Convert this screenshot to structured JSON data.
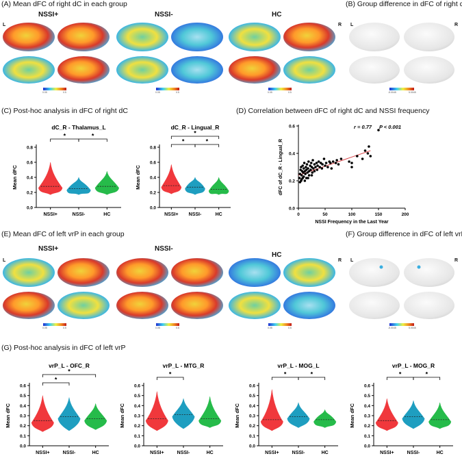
{
  "panels": {
    "A": {
      "title": "(A) Mean dFC of right dC in each group",
      "groups": [
        "NSSI+",
        "NSSI-",
        "HC"
      ],
      "left": "L",
      "right": "R",
      "colorbar": [
        {
          "min": "0.05",
          "max": "0.5"
        },
        {
          "min": "0.05",
          "max": "0.5"
        },
        {
          "min": "0.05",
          "max": "0.5"
        }
      ]
    },
    "B": {
      "title": "(B) Group difference in dFC of right dC",
      "left": "L",
      "right": "R",
      "colorbar": {
        "min": "-5.0045",
        "max": "5.0045"
      }
    },
    "C": {
      "title": "(C) Post-hoc analysis in dFC of right dC"
    },
    "D": {
      "title": "(D) Correlation between dFC of right dC and NSSI frequency"
    },
    "E": {
      "title": "(E) Mean dFC of left vrP in each group",
      "groups": [
        "NSSI+",
        "NSSI-",
        "HC"
      ],
      "left": "L",
      "right": "R",
      "colorbar": [
        {
          "min": "0.05",
          "max": "0.5"
        },
        {
          "min": "0.05",
          "max": "0.5"
        },
        {
          "min": "0.05",
          "max": "0.5"
        }
      ]
    },
    "F": {
      "title": "(F) Group difference in dFC of left vrP",
      "left": "L",
      "right": "R",
      "colorbar": {
        "min": "-5.0045",
        "max": "5.0045"
      }
    },
    "G": {
      "title": "(G) Post-hoc analysis in dFC of left vrP"
    }
  },
  "colors": {
    "NSSI+": "#f0383c",
    "NSSI-": "#1e9ec0",
    "HC": "#26bb4a",
    "fit_line": "#d9474a"
  },
  "chart_data": [
    {
      "type": "violin",
      "title": "dC_R - Thalamus_L",
      "ylabel": "Mean dFC",
      "ylim": [
        0.0,
        0.8
      ],
      "yticks": [
        "0.0",
        "0.2",
        "0.4",
        "0.6",
        "0.8"
      ],
      "categories": [
        "NSSI+",
        "NSSI-",
        "HC"
      ],
      "median": [
        0.28,
        0.25,
        0.28
      ],
      "min": [
        0.17,
        0.17,
        0.17
      ],
      "max": [
        0.6,
        0.4,
        0.48
      ],
      "significance": [
        {
          "pair": [
            "NSSI+",
            "NSSI-"
          ],
          "label": "*"
        },
        {
          "pair": [
            "NSSI-",
            "HC"
          ],
          "label": "*"
        }
      ]
    },
    {
      "type": "violin",
      "title": "dC_R - Lingual_R",
      "ylabel": "Mean dFC",
      "ylim": [
        0.0,
        0.8
      ],
      "yticks": [
        "0.0",
        "0.2",
        "0.4",
        "0.6",
        "0.8"
      ],
      "categories": [
        "NSSI+",
        "NSSI-",
        "HC"
      ],
      "median": [
        0.29,
        0.27,
        0.24
      ],
      "min": [
        0.18,
        0.17,
        0.17
      ],
      "max": [
        0.57,
        0.4,
        0.4
      ],
      "significance": [
        {
          "pair": [
            "NSSI+",
            "HC"
          ],
          "label": "*"
        },
        {
          "pair": [
            "NSSI+",
            "NSSI-"
          ],
          "label": "*"
        },
        {
          "pair": [
            "NSSI-",
            "HC"
          ],
          "label": "*"
        }
      ]
    },
    {
      "type": "scatter",
      "title": "",
      "xlabel": "NSSI Frequency in the Last Year",
      "ylabel": "dFC of dC_R - Lingual_R",
      "xlim": [
        0,
        200
      ],
      "ylim": [
        0.0,
        0.6
      ],
      "xticks": [
        "0",
        "50",
        "100",
        "150",
        "200"
      ],
      "yticks": [
        "0.0",
        "0.2",
        "0.4",
        "0.6"
      ],
      "annotation_r": "r = 0.77",
      "annotation_p": "P < 0.001",
      "fit": {
        "x": [
          0,
          135
        ],
        "y": [
          0.24,
          0.42
        ]
      },
      "points": [
        [
          2,
          0.22
        ],
        [
          3,
          0.25
        ],
        [
          4,
          0.28
        ],
        [
          5,
          0.2
        ],
        [
          5,
          0.3
        ],
        [
          6,
          0.24
        ],
        [
          7,
          0.27
        ],
        [
          8,
          0.22
        ],
        [
          8,
          0.31
        ],
        [
          9,
          0.26
        ],
        [
          10,
          0.29
        ],
        [
          10,
          0.23
        ],
        [
          11,
          0.33
        ],
        [
          12,
          0.27
        ],
        [
          13,
          0.25
        ],
        [
          14,
          0.3
        ],
        [
          15,
          0.28
        ],
        [
          15,
          0.22
        ],
        [
          16,
          0.32
        ],
        [
          17,
          0.26
        ],
        [
          18,
          0.29
        ],
        [
          19,
          0.34
        ],
        [
          20,
          0.27
        ],
        [
          20,
          0.24
        ],
        [
          22,
          0.31
        ],
        [
          23,
          0.28
        ],
        [
          24,
          0.33
        ],
        [
          25,
          0.3
        ],
        [
          26,
          0.26
        ],
        [
          27,
          0.35
        ],
        [
          28,
          0.29
        ],
        [
          30,
          0.32
        ],
        [
          30,
          0.27
        ],
        [
          32,
          0.3
        ],
        [
          34,
          0.33
        ],
        [
          35,
          0.28
        ],
        [
          36,
          0.31
        ],
        [
          38,
          0.34
        ],
        [
          40,
          0.3
        ],
        [
          42,
          0.33
        ],
        [
          44,
          0.29
        ],
        [
          45,
          0.32
        ],
        [
          48,
          0.36
        ],
        [
          50,
          0.31
        ],
        [
          52,
          0.33
        ],
        [
          55,
          0.3
        ],
        [
          58,
          0.34
        ],
        [
          60,
          0.33
        ],
        [
          62,
          0.29
        ],
        [
          65,
          0.34
        ],
        [
          70,
          0.33
        ],
        [
          72,
          0.35
        ],
        [
          75,
          0.32
        ],
        [
          80,
          0.36
        ],
        [
          95,
          0.34
        ],
        [
          100,
          0.3
        ],
        [
          100,
          0.33
        ],
        [
          110,
          0.38
        ],
        [
          120,
          0.36
        ],
        [
          125,
          0.42
        ],
        [
          130,
          0.4
        ],
        [
          132,
          0.45
        ],
        [
          135,
          0.38
        ],
        [
          150,
          0.57
        ],
        [
          3,
          0.19
        ],
        [
          6,
          0.21
        ],
        [
          12,
          0.2
        ],
        [
          18,
          0.22
        ],
        [
          25,
          0.24
        ]
      ]
    },
    {
      "type": "violin",
      "title": "vrP_L - OFC_R",
      "ylabel": "Mean dFC",
      "ylim": [
        0.0,
        0.6
      ],
      "yticks": [
        "0.0",
        "0.1",
        "0.2",
        "0.3",
        "0.4",
        "0.5",
        "0.6"
      ],
      "categories": [
        "NSSI+",
        "NSSI-",
        "HC"
      ],
      "median": [
        0.25,
        0.29,
        0.27
      ],
      "min": [
        0.14,
        0.15,
        0.16
      ],
      "max": [
        0.5,
        0.48,
        0.42
      ],
      "significance": [
        {
          "pair": [
            "NSSI+",
            "HC"
          ],
          "label": "*"
        },
        {
          "pair": [
            "NSSI+",
            "NSSI-"
          ],
          "label": "*"
        }
      ]
    },
    {
      "type": "violin",
      "title": "vrP_L - MTG_R",
      "ylabel": "Mean dFC",
      "ylim": [
        0.0,
        0.6
      ],
      "yticks": [
        "0.0",
        "0.1",
        "0.2",
        "0.3",
        "0.4",
        "0.5",
        "0.6"
      ],
      "categories": [
        "NSSI+",
        "NSSI-",
        "HC"
      ],
      "median": [
        0.27,
        0.31,
        0.27
      ],
      "min": [
        0.15,
        0.17,
        0.18
      ],
      "max": [
        0.54,
        0.47,
        0.49
      ],
      "significance": [
        {
          "pair": [
            "NSSI+",
            "NSSI-"
          ],
          "label": "*"
        }
      ]
    },
    {
      "type": "violin",
      "title": "vrP_L - MOG_L",
      "ylabel": "Mean dFC",
      "ylim": [
        0.0,
        0.6
      ],
      "yticks": [
        "0.0",
        "0.1",
        "0.2",
        "0.3",
        "0.4",
        "0.5",
        "0.6"
      ],
      "categories": [
        "NSSI+",
        "NSSI-",
        "HC"
      ],
      "median": [
        0.26,
        0.29,
        0.26
      ],
      "min": [
        0.15,
        0.18,
        0.18
      ],
      "max": [
        0.56,
        0.43,
        0.36
      ],
      "significance": [
        {
          "pair": [
            "NSSI+",
            "NSSI-"
          ],
          "label": "*"
        },
        {
          "pair": [
            "NSSI-",
            "HC"
          ],
          "label": "*"
        }
      ]
    },
    {
      "type": "violin",
      "title": "vrP_L - MOG_R",
      "ylabel": "Mean dFC",
      "ylim": [
        0.0,
        0.6
      ],
      "yticks": [
        "0.0",
        "0.1",
        "0.2",
        "0.3",
        "0.4",
        "0.5",
        "0.6"
      ],
      "categories": [
        "NSSI+",
        "NSSI-",
        "HC"
      ],
      "median": [
        0.25,
        0.29,
        0.26
      ],
      "min": [
        0.15,
        0.17,
        0.17
      ],
      "max": [
        0.47,
        0.45,
        0.43
      ],
      "significance": [
        {
          "pair": [
            "NSSI+",
            "NSSI-"
          ],
          "label": "*"
        },
        {
          "pair": [
            "NSSI-",
            "HC"
          ],
          "label": "*"
        }
      ]
    }
  ]
}
